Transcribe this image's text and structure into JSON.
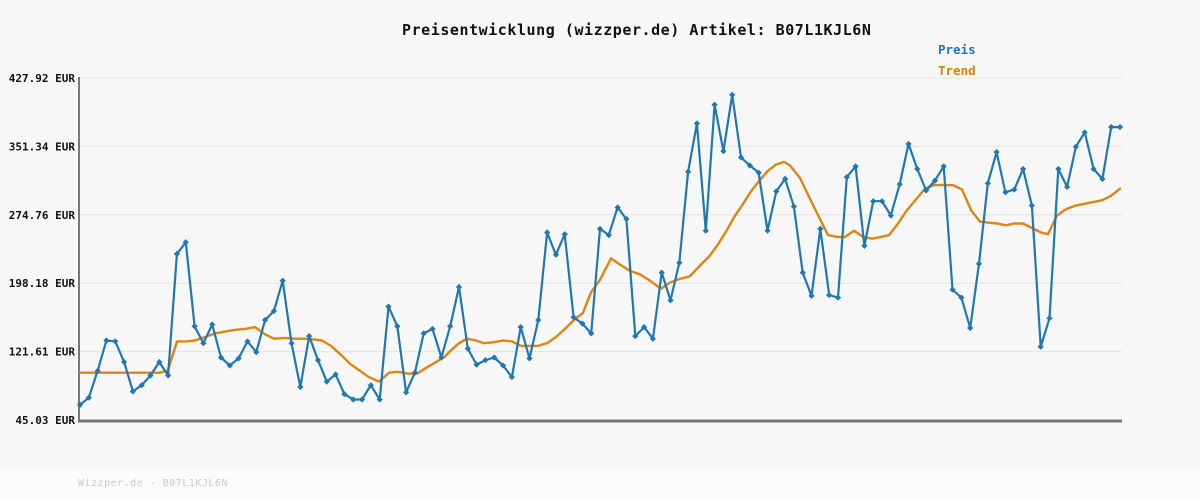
{
  "header": {
    "title": "Preisentwicklung (wizzper.de) Artikel: B07L1KJL6N"
  },
  "legend": [
    {
      "label": "Preis",
      "color": "#1f77b4"
    },
    {
      "label": "Trend",
      "color": "#d98200"
    }
  ],
  "footer": {
    "watermark": "Wizzper.de - B07L1KJL6N"
  },
  "colors": {
    "background": "#f7f7f7",
    "grid": "#e3e3e3",
    "axis": "#777777",
    "price_line": "#1f77b4",
    "trend_line": "#de8512",
    "title_text": "#111111",
    "watermark_text": "#c9c9c9"
  },
  "chart_data": {
    "type": "line",
    "title": "Preisentwicklung (wizzper.de) Artikel: B07L1KJL6N",
    "xlabel": "",
    "ylabel": "EUR",
    "ylim": [
      45.03,
      427.92
    ],
    "grid": true,
    "legend_position": "top-right",
    "yticks": [
      "427.92 EUR",
      "351.34 EUR",
      "274.76 EUR",
      "198.18 EUR",
      "121.61 EUR",
      "45.03 EUR"
    ],
    "ytick_values": [
      427.92,
      351.34,
      274.76,
      198.18,
      121.61,
      45.03
    ],
    "series": [
      {
        "name": "Preis",
        "marker": "diamond",
        "values": [
          62,
          70,
          100,
          134,
          133,
          110,
          77,
          84,
          95,
          110,
          95,
          231,
          244,
          150,
          131,
          152,
          115,
          106,
          114,
          133,
          121,
          157,
          167,
          201,
          131,
          82,
          139,
          112,
          88,
          96,
          74,
          68,
          68,
          84,
          68,
          172,
          150,
          76,
          98,
          142,
          147,
          115,
          150,
          194,
          125,
          107,
          112,
          115,
          106,
          93,
          149,
          114,
          157,
          255,
          230,
          253,
          160,
          153,
          142,
          259,
          252,
          283,
          270,
          139,
          149,
          136,
          210,
          179,
          221,
          323,
          377,
          257,
          398,
          346,
          409,
          339,
          330,
          322,
          257,
          301,
          315,
          284,
          210,
          184,
          259,
          185,
          182,
          317,
          329,
          240,
          290,
          290,
          274,
          309,
          354,
          326,
          302,
          313,
          329,
          191,
          182,
          148,
          220,
          310,
          345,
          300,
          303,
          326,
          285,
          127,
          159,
          326,
          306,
          351,
          367,
          326,
          315,
          373,
          373
        ]
      },
      {
        "name": "Trend",
        "marker": "none",
        "points": [
          [
            80,
            98
          ],
          [
            160,
            98
          ],
          [
            168,
            101
          ],
          [
            177,
            133
          ],
          [
            186,
            133
          ],
          [
            195,
            134
          ],
          [
            205,
            138
          ],
          [
            215,
            142
          ],
          [
            225,
            144
          ],
          [
            235,
            146
          ],
          [
            245,
            147
          ],
          [
            255,
            149
          ],
          [
            265,
            141
          ],
          [
            274,
            136
          ],
          [
            285,
            137
          ],
          [
            295,
            136
          ],
          [
            305,
            136
          ],
          [
            315,
            135
          ],
          [
            322,
            134
          ],
          [
            331,
            128
          ],
          [
            341,
            118
          ],
          [
            350,
            108
          ],
          [
            360,
            100
          ],
          [
            369,
            93
          ],
          [
            379,
            88
          ],
          [
            389,
            98
          ],
          [
            398,
            99
          ],
          [
            408,
            97
          ],
          [
            417,
            97
          ],
          [
            427,
            104
          ],
          [
            436,
            110
          ],
          [
            445,
            116
          ],
          [
            450,
            122
          ],
          [
            459,
            131
          ],
          [
            467,
            136
          ],
          [
            476,
            134
          ],
          [
            484,
            131
          ],
          [
            493,
            132
          ],
          [
            503,
            134
          ],
          [
            512,
            133
          ],
          [
            521,
            128
          ],
          [
            529,
            128
          ],
          [
            538,
            128
          ],
          [
            547,
            131
          ],
          [
            556,
            138
          ],
          [
            565,
            147
          ],
          [
            574,
            157
          ],
          [
            583,
            165
          ],
          [
            591,
            188
          ],
          [
            600,
            202
          ],
          [
            611,
            226
          ],
          [
            620,
            219
          ],
          [
            630,
            212
          ],
          [
            640,
            208
          ],
          [
            650,
            201
          ],
          [
            661,
            192
          ],
          [
            670,
            199
          ],
          [
            680,
            203
          ],
          [
            690,
            206
          ],
          [
            700,
            218
          ],
          [
            709,
            228
          ],
          [
            717,
            240
          ],
          [
            726,
            256
          ],
          [
            734,
            272
          ],
          [
            743,
            287
          ],
          [
            751,
            301
          ],
          [
            760,
            314
          ],
          [
            768,
            324
          ],
          [
            776,
            331
          ],
          [
            784,
            334
          ],
          [
            790,
            330
          ],
          [
            800,
            316
          ],
          [
            812,
            288
          ],
          [
            820,
            270
          ],
          [
            828,
            252
          ],
          [
            837,
            250
          ],
          [
            845,
            250
          ],
          [
            854,
            257
          ],
          [
            863,
            250
          ],
          [
            872,
            248
          ],
          [
            881,
            250
          ],
          [
            889,
            252
          ],
          [
            898,
            265
          ],
          [
            907,
            280
          ],
          [
            916,
            292
          ],
          [
            925,
            304
          ],
          [
            934,
            308
          ],
          [
            944,
            308
          ],
          [
            953,
            308
          ],
          [
            962,
            303
          ],
          [
            971,
            280
          ],
          [
            980,
            267
          ],
          [
            988,
            266
          ],
          [
            997,
            265
          ],
          [
            1006,
            263
          ],
          [
            1014,
            265
          ],
          [
            1023,
            265
          ],
          [
            1032,
            260
          ],
          [
            1041,
            255
          ],
          [
            1048,
            253
          ],
          [
            1057,
            274
          ],
          [
            1066,
            281
          ],
          [
            1075,
            285
          ],
          [
            1084,
            287
          ],
          [
            1093,
            289
          ],
          [
            1102,
            291
          ],
          [
            1111,
            296
          ],
          [
            1120,
            304
          ]
        ]
      }
    ]
  }
}
